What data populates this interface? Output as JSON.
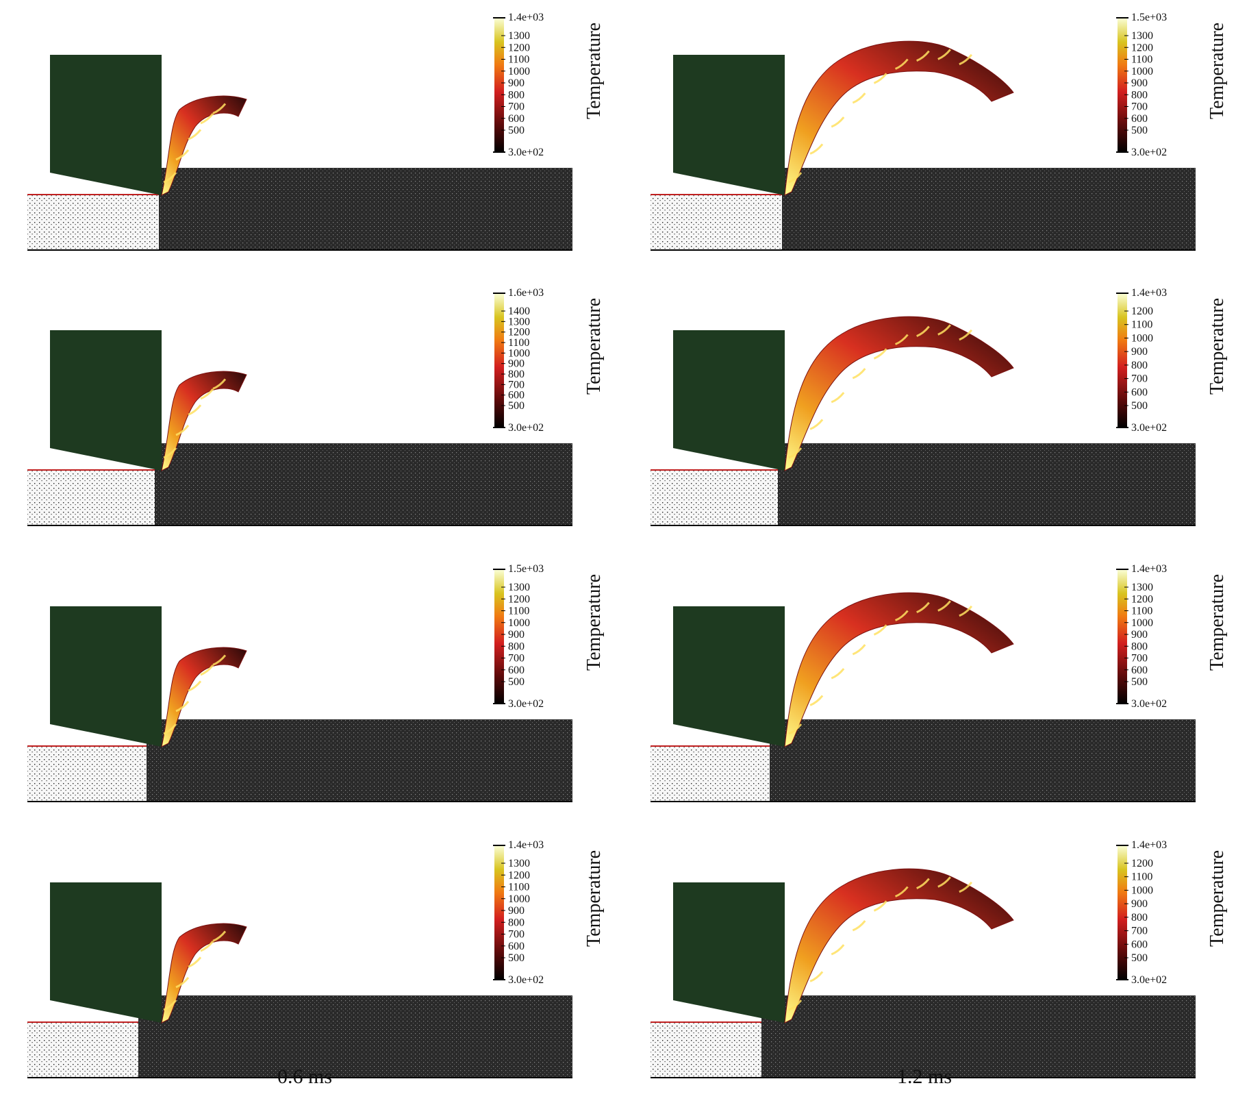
{
  "colorbar_title": "Temperature",
  "column_captions": [
    "0.6 ms",
    "1.2 ms"
  ],
  "colors": {
    "tool": "#1e3a20",
    "workpiece_dark": "#1a1a1a",
    "workpiece_light_bg": "#f6f6f6",
    "chip_hot": "#ffff80",
    "chip_mid": "#e03a1a",
    "chip_cold": "#1a0505"
  },
  "panels": [
    {
      "col": 0,
      "row": 0,
      "colorbar": {
        "max": "1.4e+03",
        "min": "3.0e+02",
        "ticks": [
          "1300",
          "1200",
          "1100",
          "1000",
          "900",
          "800",
          "700",
          "600",
          "500"
        ]
      }
    },
    {
      "col": 1,
      "row": 0,
      "colorbar": {
        "max": "1.5e+03",
        "min": "3.0e+02",
        "ticks": [
          "1300",
          "1200",
          "1100",
          "1000",
          "900",
          "800",
          "700",
          "600",
          "500"
        ]
      }
    },
    {
      "col": 0,
      "row": 1,
      "colorbar": {
        "max": "1.6e+03",
        "min": "3.0e+02",
        "ticks": [
          "1400",
          "1300",
          "1200",
          "1100",
          "1000",
          "900",
          "800",
          "700",
          "600",
          "500"
        ]
      }
    },
    {
      "col": 1,
      "row": 1,
      "colorbar": {
        "max": "1.4e+03",
        "min": "3.0e+02",
        "ticks": [
          "1200",
          "1100",
          "1000",
          "900",
          "800",
          "700",
          "600",
          "500"
        ]
      }
    },
    {
      "col": 0,
      "row": 2,
      "colorbar": {
        "max": "1.5e+03",
        "min": "3.0e+02",
        "ticks": [
          "1300",
          "1200",
          "1100",
          "1000",
          "900",
          "800",
          "700",
          "600",
          "500"
        ]
      }
    },
    {
      "col": 1,
      "row": 2,
      "colorbar": {
        "max": "1.4e+03",
        "min": "3.0e+02",
        "ticks": [
          "1300",
          "1200",
          "1100",
          "1000",
          "900",
          "800",
          "700",
          "600",
          "500"
        ]
      }
    },
    {
      "col": 0,
      "row": 3,
      "colorbar": {
        "max": "1.4e+03",
        "min": "3.0e+02",
        "ticks": [
          "1300",
          "1200",
          "1100",
          "1000",
          "900",
          "800",
          "700",
          "600",
          "500"
        ]
      }
    },
    {
      "col": 1,
      "row": 3,
      "colorbar": {
        "max": "1.4e+03",
        "min": "3.0e+02",
        "ticks": [
          "1200",
          "1100",
          "1000",
          "900",
          "800",
          "700",
          "600",
          "500"
        ]
      }
    }
  ]
}
